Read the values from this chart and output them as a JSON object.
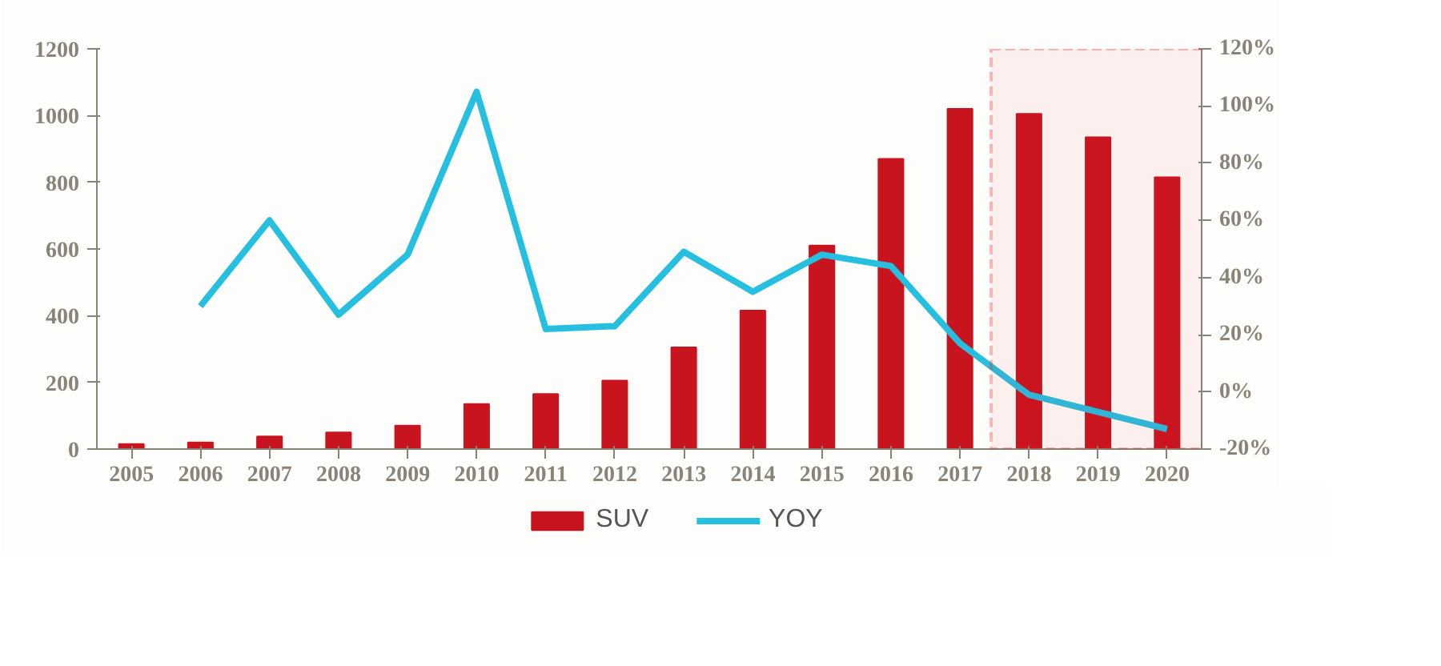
{
  "chart_data": {
    "type": "bar",
    "categories": [
      "2005",
      "2006",
      "2007",
      "2008",
      "2009",
      "2010",
      "2011",
      "2012",
      "2013",
      "2014",
      "2015",
      "2016",
      "2017",
      "2018",
      "2019",
      "2020"
    ],
    "series": [
      {
        "name": "SUV",
        "color": "#c8141e",
        "values": [
          15,
          20,
          38,
          50,
          70,
          135,
          165,
          205,
          305,
          415,
          610,
          870,
          1020,
          1005,
          935,
          815
        ]
      },
      {
        "name": "YOY",
        "type": "line",
        "axis": "y2",
        "color": "#27bfe0",
        "values": [
          null,
          30,
          60,
          27,
          48,
          105,
          22,
          23,
          49,
          35,
          48,
          44,
          17,
          -1,
          -7,
          -13
        ]
      }
    ],
    "ylim": [
      0,
      1200
    ],
    "yticks": [
      0,
      200,
      400,
      600,
      800,
      1000,
      1200
    ],
    "y2lim": [
      -20,
      120
    ],
    "y2ticks": [
      {
        "value": -20,
        "label": "-20%"
      },
      {
        "value": 0,
        "label": "0%"
      },
      {
        "value": 20,
        "label": "20%"
      },
      {
        "value": 40,
        "label": "40%"
      },
      {
        "value": 60,
        "label": "60%"
      },
      {
        "value": 80,
        "label": "80%"
      },
      {
        "value": 100,
        "label": "100%"
      },
      {
        "value": 120,
        "label": "120%"
      }
    ],
    "bands": [
      {
        "axis": "x",
        "from": "2018",
        "to": "2020",
        "color": "#e8262c"
      }
    ],
    "grid": false,
    "legend": "bottom",
    "marker": "none",
    "line_style": "solid"
  }
}
